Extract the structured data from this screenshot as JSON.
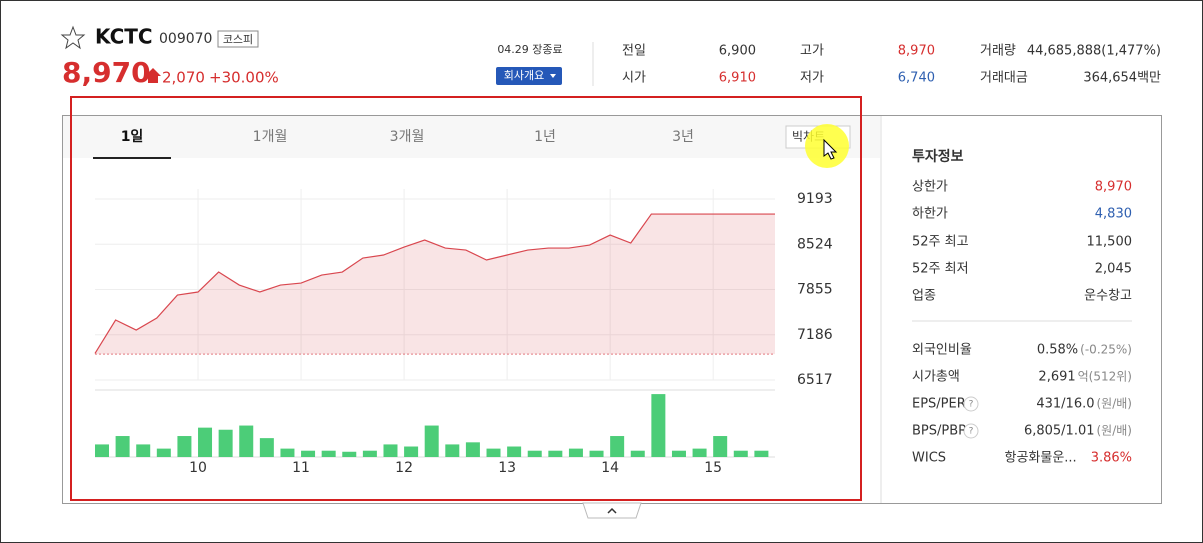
{
  "header": {
    "name": "KCTC",
    "code": "009070",
    "market": "코스피",
    "price": "8,970",
    "change": "2,070",
    "change_rate": "+30.00%",
    "status": "04.29 장종료",
    "company_button": "회사개요"
  },
  "quotes": [
    {
      "label": "전일",
      "value": "6,900"
    },
    {
      "label": "시가",
      "value": "6,910"
    },
    {
      "label": "고가",
      "value": "8,970"
    },
    {
      "label": "저가",
      "value": "6,740"
    },
    {
      "label": "거래량",
      "value": "44,685,888(1,477%)"
    },
    {
      "label": "거래대금",
      "value": "364,654백만"
    }
  ],
  "tabs": [
    "1일",
    "1개월",
    "3개월",
    "1년",
    "3년",
    "빅차트"
  ],
  "chart": {
    "type": "line",
    "color": "#d9474f",
    "volume_color": "#4ccd78",
    "grid": true,
    "x": [
      9.0,
      9.2,
      9.4,
      9.6,
      9.8,
      10.0,
      10.2,
      10.4,
      10.6,
      10.8,
      11.0,
      11.2,
      11.4,
      11.6,
      11.8,
      12.0,
      12.2,
      12.4,
      12.6,
      12.8,
      13.0,
      13.2,
      13.4,
      13.6,
      13.8,
      14.0,
      14.2,
      14.4,
      14.6,
      14.8,
      15.0,
      15.2,
      15.4,
      15.6
    ],
    "values": [
      6910,
      7404,
      7256,
      7433,
      7773,
      7818,
      8113,
      7921,
      7818,
      7921,
      7950,
      8069,
      8113,
      8320,
      8365,
      8483,
      8586,
      8468,
      8438,
      8291,
      8365,
      8438,
      8468,
      8468,
      8512,
      8660,
      8542,
      8970,
      8970,
      8970,
      8970,
      8970,
      8970,
      8970
    ],
    "volume": [
      12,
      20,
      12,
      8,
      20,
      28,
      26,
      30,
      18,
      8,
      6,
      6,
      5,
      6,
      12,
      10,
      30,
      12,
      14,
      8,
      10,
      6,
      6,
      8,
      6,
      20,
      6,
      60,
      6,
      8,
      20,
      6,
      6,
      0
    ],
    "xlim": [
      9,
      15.6
    ],
    "ylim": [
      6517,
      9193
    ],
    "yticks": [
      6517,
      7186,
      7855,
      8524,
      9193
    ],
    "xticks": [
      10,
      11,
      12,
      13,
      14,
      15
    ],
    "volume_lim": [
      0,
      62
    ],
    "base": 6900
  },
  "invest": {
    "title": "투자정보",
    "rows": [
      {
        "label": "상한가",
        "value": "8,970"
      },
      {
        "label": "하한가",
        "value": "4,830"
      },
      {
        "label": "52주 최고",
        "value": "11,500"
      },
      {
        "label": "52주 최저",
        "value": "2,045"
      },
      {
        "label": "업종",
        "value": "운수창고"
      },
      {
        "label": "외국인비율",
        "value": "0.58%",
        "note": "(-0.25%)"
      },
      {
        "label": "시가총액",
        "value": "2,691",
        "note": "억(512위)"
      },
      {
        "label": "EPS/PER",
        "help": "?",
        "value": "431/16.0",
        "note": "(원/배)"
      },
      {
        "label": "BPS/PBR",
        "help": "?",
        "value": "6,805/1.01",
        "note": "(원/배)"
      },
      {
        "label": "WICS",
        "value": "항공화물운...",
        "note": "3.86%"
      }
    ]
  }
}
